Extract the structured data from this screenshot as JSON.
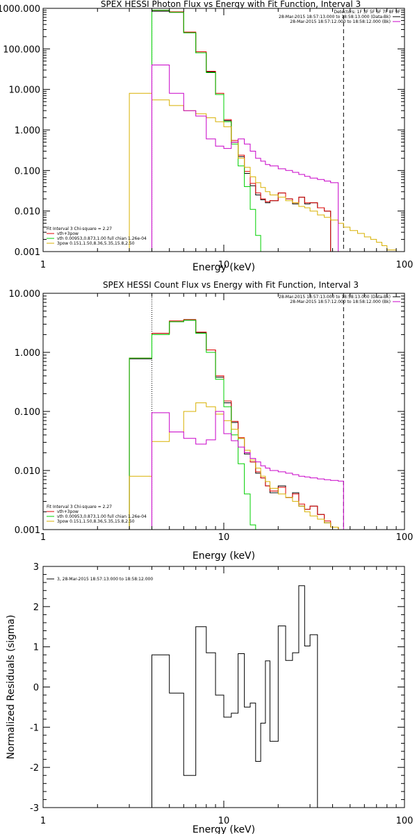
{
  "colors": {
    "black": "#000000",
    "red": "#e00000",
    "green": "#00d000",
    "yellow": "#d8b000",
    "magenta": "#c800c8",
    "background": "#ffffff"
  },
  "chart_data": [
    {
      "type": "line",
      "step": true,
      "title": "SPEX HESSI Photon Flux vs Energy with Fit Function, Interval 3",
      "xlabel": "Energy (keV)",
      "ylabel": "",
      "xscale": "log",
      "yscale": "log",
      "xlim": [
        1,
        100
      ],
      "ylim": [
        0.001,
        1000
      ],
      "x_ticks": [
        "1",
        "10",
        "100"
      ],
      "y_ticks": [
        "0.001",
        "0.010",
        "0.100",
        "1.000",
        "10.000",
        "100.000",
        "1000.000"
      ],
      "x_edges": [
        3,
        4,
        5,
        6,
        7,
        8,
        9,
        10,
        11,
        12,
        13,
        14,
        15,
        16,
        17,
        18,
        20,
        22,
        24,
        26,
        28,
        30,
        33,
        36,
        39,
        43,
        46,
        50,
        55,
        60,
        65,
        70,
        75,
        80,
        90
      ],
      "dotted_vline_x": 4,
      "dashed_vline_x": 46,
      "legend_right": {
        "header": "Detectors: 1F 3F 5F 6F 7F 8F 9F",
        "items": [
          {
            "text": "28-Mar-2015 18:57:13.000 to 18:58:13.000 (Data-Bk)",
            "color": "#000000"
          },
          {
            "text": "28-Mar-2015 18:57:12.000 to 18:58:12.000 (Bk)",
            "color": "#c800c8"
          }
        ]
      },
      "legend_left": {
        "header": "Fit Interval 3   Chi-square = 2.27",
        "items": [
          {
            "text": "vth+3pow",
            "color": "#e00000"
          },
          {
            "text": "vth 0.00953,0.873,1.00  full chian 1.26e-04",
            "color": "#00d000"
          },
          {
            "text": "3pow 0.151,1.50,8.36,5.35,15.8,2.50",
            "color": "#d8b000"
          }
        ]
      },
      "series": [
        {
          "color": "#000000",
          "values": [
            null,
            850,
            800,
            250,
            80,
            27,
            7.5,
            1.7,
            0.5,
            0.22,
            0.085,
            0.042,
            0.025,
            0.019,
            0.016,
            0.018,
            0.028,
            0.02,
            0.015,
            0.022,
            0.015,
            0.016,
            0.012,
            0.01
          ]
        },
        {
          "color": "#e00000",
          "values": [
            null,
            900,
            820,
            260,
            85,
            28,
            8,
            1.8,
            0.55,
            0.24,
            0.095,
            0.048,
            0.028,
            0.02,
            0.017,
            0.018,
            0.028,
            0.02,
            0.016,
            0.022,
            0.016,
            0.016,
            0.012,
            0.01
          ]
        },
        {
          "color": "#00d000",
          "values": [
            null,
            900,
            800,
            250,
            80,
            26,
            7.5,
            1.6,
            0.45,
            0.13,
            0.04,
            0.011,
            0.0025
          ]
        },
        {
          "color": "#d8b000",
          "values": [
            8,
            5.5,
            4,
            3,
            2.5,
            2,
            1.6,
            1.2,
            0.5,
            0.2,
            0.12,
            0.07,
            0.05,
            0.038,
            0.03,
            0.025,
            0.022,
            0.018,
            0.016,
            0.013,
            0.012,
            0.01,
            0.008,
            0.007,
            0.006,
            0.005,
            0.004,
            0.0033,
            0.0028,
            0.0023,
            0.002,
            0.0017,
            0.0014,
            0.0011
          ]
        },
        {
          "color": "#c800c8",
          "values": [
            null,
            40,
            8,
            3,
            2.2,
            0.6,
            0.4,
            0.35,
            0.5,
            0.6,
            0.45,
            0.3,
            0.2,
            0.17,
            0.14,
            0.13,
            0.11,
            0.1,
            0.09,
            0.08,
            0.072,
            0.065,
            0.06,
            0.055,
            0.05
          ]
        }
      ]
    },
    {
      "type": "line",
      "step": true,
      "title": "SPEX HESSI Count Flux vs Energy with Fit Function, Interval 3",
      "xlabel": "Energy (keV)",
      "ylabel": "",
      "xscale": "log",
      "yscale": "log",
      "xlim": [
        1,
        100
      ],
      "ylim": [
        0.001,
        10
      ],
      "x_ticks": [
        "1",
        "10",
        "100"
      ],
      "y_ticks": [
        "0.001",
        "0.010",
        "0.100",
        "1.000",
        "10.000"
      ],
      "x_edges": [
        3,
        4,
        5,
        6,
        7,
        8,
        9,
        10,
        11,
        12,
        13,
        14,
        15,
        16,
        17,
        18,
        20,
        22,
        24,
        26,
        28,
        30,
        33,
        36,
        39,
        43,
        46
      ],
      "dotted_vline_x": 4,
      "dashed_vline_x": 46,
      "legend_right": {
        "items": [
          {
            "text": "28-Mar-2015 18:57:13.000 to 18:58:13.000 (Data-Bk)",
            "color": "#000000"
          },
          {
            "text": "28-Mar-2015 18:57:12.000 to 18:58:12.000 (Bk)",
            "color": "#c800c8"
          }
        ]
      },
      "legend_left": {
        "header": "Fit Interval 3   Chi-square = 2.27",
        "items": [
          {
            "text": "vth+3pow",
            "color": "#e00000"
          },
          {
            "text": "vth 0.00953,0.873,1.00  full chian 1.26e-04",
            "color": "#00d000"
          },
          {
            "text": "3pow 0.151,1.50,8.36,5.35,15.8,2.50",
            "color": "#d8b000"
          }
        ]
      },
      "series": [
        {
          "color": "#000000",
          "values": [
            0.78,
            2.1,
            3.3,
            3.5,
            2.15,
            1.1,
            0.38,
            0.14,
            0.065,
            0.035,
            0.019,
            0.014,
            0.009,
            0.0075,
            0.0055,
            0.0042,
            0.0055,
            0.0035,
            0.0042,
            0.0025,
            0.0022,
            0.0025,
            0.0018,
            0.0013,
            0.0011,
            0.001
          ]
        },
        {
          "color": "#e00000",
          "values": [
            0.8,
            2.1,
            3.4,
            3.6,
            2.2,
            1.1,
            0.4,
            0.15,
            0.068,
            0.036,
            0.02,
            0.014,
            0.0095,
            0.0075,
            0.0055,
            0.0045,
            0.0052,
            0.0035,
            0.004,
            0.0027,
            0.0022,
            0.0025,
            0.0018,
            0.0014,
            0.0011,
            0.001
          ]
        },
        {
          "color": "#00d000",
          "values": [
            0.8,
            2.0,
            3.3,
            3.5,
            2.1,
            1.0,
            0.35,
            0.12,
            0.04,
            0.013,
            0.004,
            0.0012
          ]
        },
        {
          "color": "#d8b000",
          "values": [
            0.008,
            0.031,
            0.045,
            0.1,
            0.14,
            0.12,
            0.09,
            0.07,
            0.05,
            0.035,
            0.022,
            0.015,
            0.011,
            0.008,
            0.0065,
            0.005,
            0.004,
            0.0035,
            0.003,
            0.0025,
            0.002,
            0.0017,
            0.0015,
            0.0013,
            0.0011,
            0.001
          ]
        },
        {
          "color": "#c800c8",
          "values": [
            null,
            0.095,
            0.045,
            0.035,
            0.028,
            0.033,
            0.1,
            0.042,
            0.032,
            0.025,
            0.02,
            0.016,
            0.014,
            0.012,
            0.011,
            0.01,
            0.0095,
            0.009,
            0.0085,
            0.008,
            0.0078,
            0.0075,
            0.0072,
            0.007,
            0.0068,
            0.0066
          ]
        }
      ]
    },
    {
      "type": "line",
      "step": true,
      "title": "",
      "xlabel": "Energy (keV)",
      "ylabel": "Normalized Residuals (sigma)",
      "xscale": "log",
      "yscale": "linear",
      "xlim": [
        1,
        100
      ],
      "ylim": [
        -3,
        3
      ],
      "x_ticks": [
        "1",
        "10",
        "100"
      ],
      "y_ticks": [
        "-3",
        "-2",
        "-1",
        "0",
        "1",
        "2",
        "3"
      ],
      "x_edges": [
        4,
        5,
        6,
        7,
        8,
        9,
        10,
        11,
        12,
        13,
        14,
        15,
        16,
        17,
        18,
        20,
        22,
        24,
        26,
        28,
        30,
        33,
        36,
        39,
        43,
        46
      ],
      "legend_right": null,
      "legend_left": {
        "header": "",
        "items": [
          {
            "text": "3, 28-Mar-2015 18:57:13.000 to 18:58:12.000",
            "color": "#000000"
          }
        ]
      },
      "series": [
        {
          "color": "#000000",
          "values": [
            0.8,
            -0.15,
            -2.2,
            1.5,
            0.85,
            -0.2,
            -0.75,
            -0.65,
            0.83,
            -0.5,
            -0.4,
            -1.85,
            -0.9,
            0.65,
            -1.35,
            1.52,
            0.66,
            0.85,
            2.52,
            1.02,
            1.3
          ]
        }
      ]
    }
  ]
}
